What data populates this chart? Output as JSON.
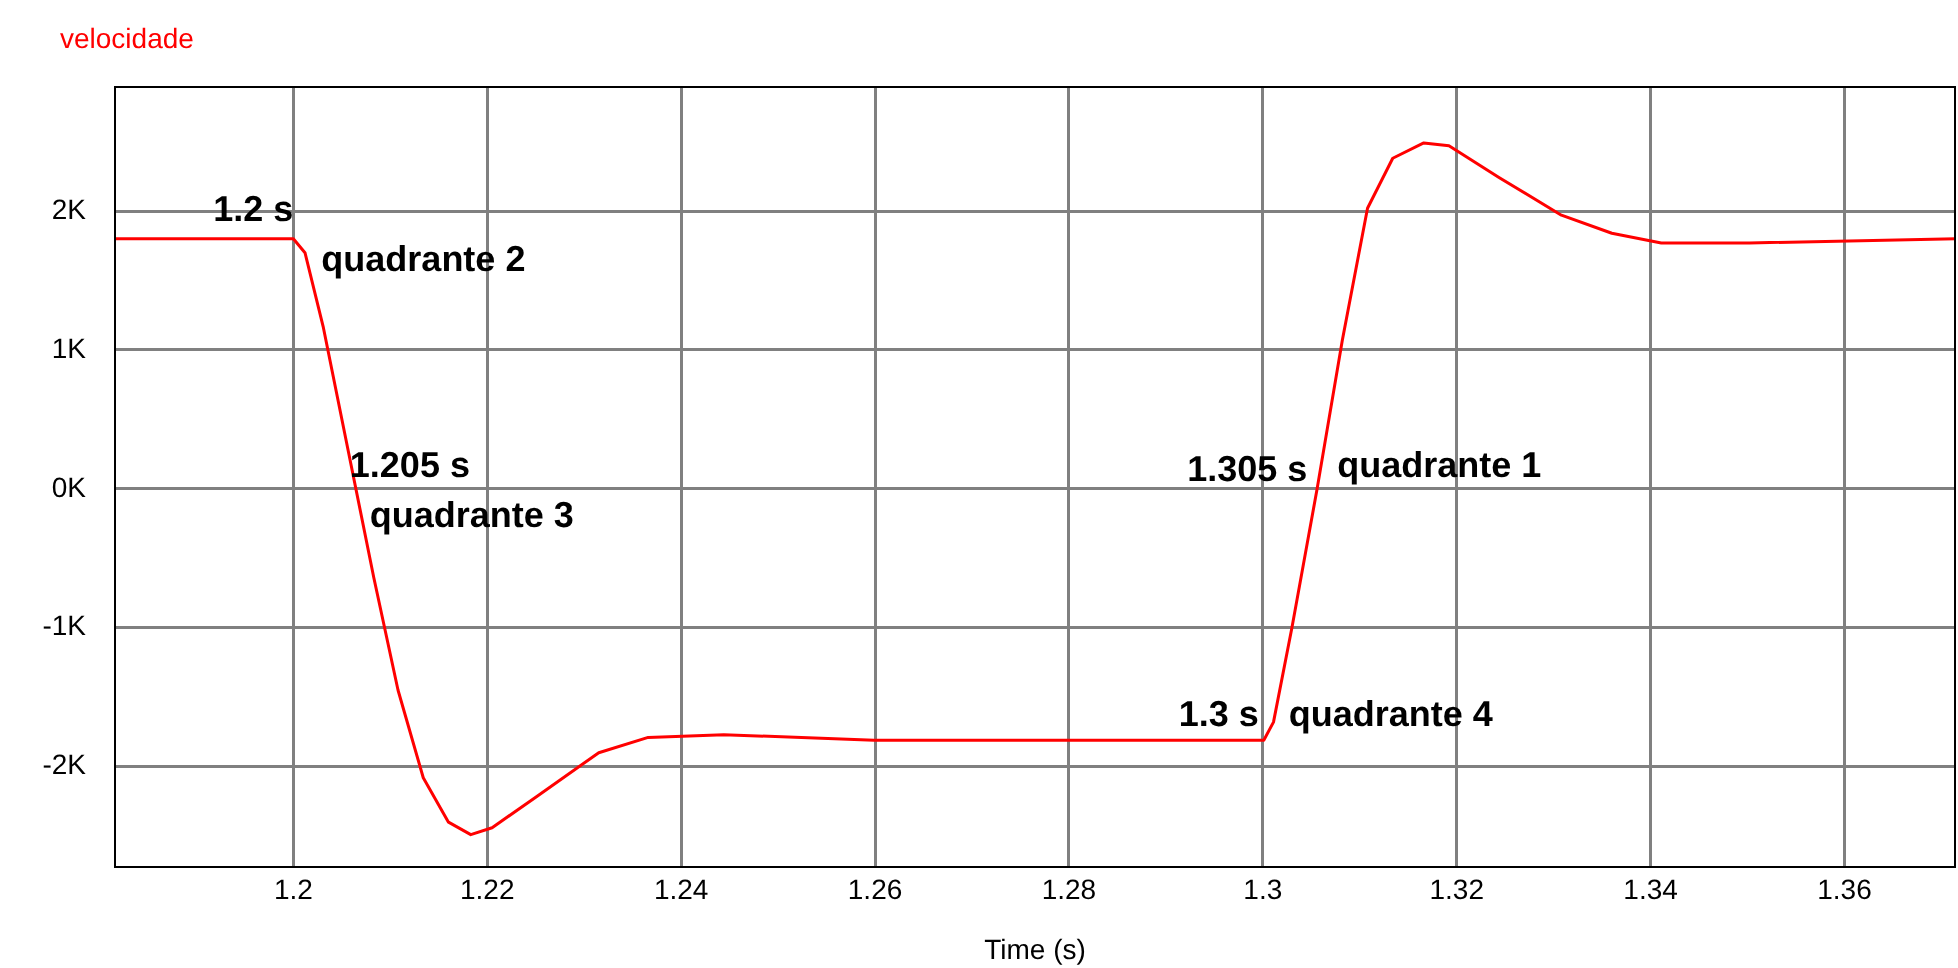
{
  "chart_data": {
    "type": "line",
    "title": "velocidade",
    "xlabel": "Time (s)",
    "x": [
      1.1815,
      1.2,
      1.2012,
      1.2031,
      1.2057,
      1.2083,
      1.2108,
      1.2134,
      1.216,
      1.2183,
      1.2205,
      1.225,
      1.2315,
      1.2366,
      1.2444,
      1.2599,
      1.3001,
      1.3011,
      1.303,
      1.3056,
      1.3082,
      1.3108,
      1.3134,
      1.3166,
      1.3192,
      1.3244,
      1.3308,
      1.336,
      1.3411,
      1.3502,
      1.3715
    ],
    "series": [
      {
        "color": "#ff0000",
        "values": [
          1800,
          1800,
          1700,
          1160,
          260,
          -640,
          -1450,
          -2080,
          -2400,
          -2490,
          -2440,
          -2220,
          -1900,
          -1790,
          -1770,
          -1810,
          -1810,
          -1680,
          -1000,
          0,
          1070,
          2020,
          2380,
          2490,
          2470,
          2240,
          1970,
          1840,
          1770,
          1770,
          1800
        ]
      }
    ],
    "xlim": [
      1.1815,
      1.3715
    ],
    "xticks": [
      1.2,
      1.22,
      1.24,
      1.26,
      1.28,
      1.3,
      1.32,
      1.34,
      1.36
    ],
    "ylim": [
      -2730,
      2900
    ],
    "yticks": [
      {
        "value": -2000,
        "label": "-2K"
      },
      {
        "value": -1000,
        "label": "-1K"
      },
      {
        "value": 0,
        "label": "0K"
      },
      {
        "value": 1000,
        "label": "1K"
      },
      {
        "value": 2000,
        "label": "2K"
      }
    ],
    "grid": true,
    "legend": false,
    "marker": "none",
    "line_style": "solid",
    "annotations": [
      {
        "text": "1.2 s",
        "x": 1.2,
        "y": 1800
      },
      {
        "text": "quadrante 2",
        "x": 1.2,
        "y": 1800
      },
      {
        "text": "1.205 s",
        "x": 1.205,
        "y": 500
      },
      {
        "text": "quadrante 3",
        "x": 1.205,
        "y": 500
      },
      {
        "text": "1.305 s",
        "x": 1.305,
        "y": -230
      },
      {
        "text": "quadrante 1",
        "x": 1.305,
        "y": -230
      },
      {
        "text": "1.3 s",
        "x": 1.3,
        "y": -1810
      },
      {
        "text": "quadrante 4",
        "x": 1.3,
        "y": -1810
      }
    ]
  }
}
